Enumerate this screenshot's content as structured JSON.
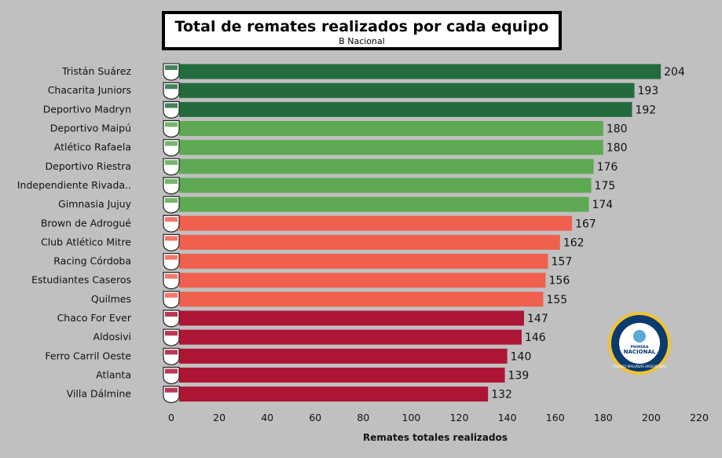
{
  "chart_data": {
    "type": "bar",
    "orientation": "horizontal",
    "title": "Total de remates realizados por cada equipo",
    "subtitle": "B Nacional",
    "xlabel": "Remates totales realizados",
    "ylabel": "",
    "xlim": [
      0,
      220
    ],
    "xticks": [
      0,
      20,
      40,
      60,
      80,
      100,
      120,
      140,
      160,
      180,
      200,
      220
    ],
    "grid": false,
    "categories": [
      "Tristán Suárez",
      "Chacarita Juniors",
      "Deportivo Madryn",
      "Deportivo Maipú",
      "Atlético Rafaela",
      "Deportivo Riestra",
      "Independiente Rivada..",
      "Gimnasia Jujuy",
      "Brown de Adrogué",
      "Club Atlético Mitre",
      "Racing Córdoba",
      "Estudiantes Caseros",
      "Quilmes",
      "Chaco For Ever",
      "Aldosivi",
      "Ferro Carril Oeste",
      "Atlanta",
      "Villa Dálmine"
    ],
    "values": [
      204,
      193,
      192,
      180,
      180,
      176,
      175,
      174,
      167,
      162,
      157,
      156,
      155,
      147,
      146,
      140,
      139,
      132
    ],
    "bar_colors": [
      "#236b3d",
      "#236b3d",
      "#236b3d",
      "#5fa854",
      "#5fa854",
      "#5fa854",
      "#5fa854",
      "#5fa854",
      "#f0604f",
      "#f0604f",
      "#f0604f",
      "#f0604f",
      "#f0604f",
      "#ad1535",
      "#ad1535",
      "#ad1535",
      "#ad1535",
      "#ad1535"
    ],
    "crest_icons": [
      "tristan-suarez-crest-icon",
      "chacarita-crest-icon",
      "madryn-crest-icon",
      "maipu-crest-icon",
      "rafaela-crest-icon",
      "riestra-crest-icon",
      "rivadavia-crest-icon",
      "gimnasia-jujuy-crest-icon",
      "brown-adrogue-crest-icon",
      "mitre-crest-icon",
      "racing-cordoba-crest-icon",
      "estudiantes-caseros-crest-icon",
      "quilmes-crest-icon",
      "chaco-for-ever-crest-icon",
      "aldosivi-crest-icon",
      "ferro-crest-icon",
      "atlanta-crest-icon",
      "villa-dalmine-crest-icon"
    ],
    "logo": {
      "icon": "primera-nacional-logo-icon",
      "text_top": "PRIMERA",
      "text_main": "NACIONAL",
      "text_ring": "TORNEO MALVINAS ARGENTINAS"
    }
  },
  "colors": {
    "background": "#c0c0c0",
    "dark_green": "#236b3d",
    "green": "#5fa854",
    "salmon": "#f0604f",
    "crimson": "#ad1535"
  }
}
